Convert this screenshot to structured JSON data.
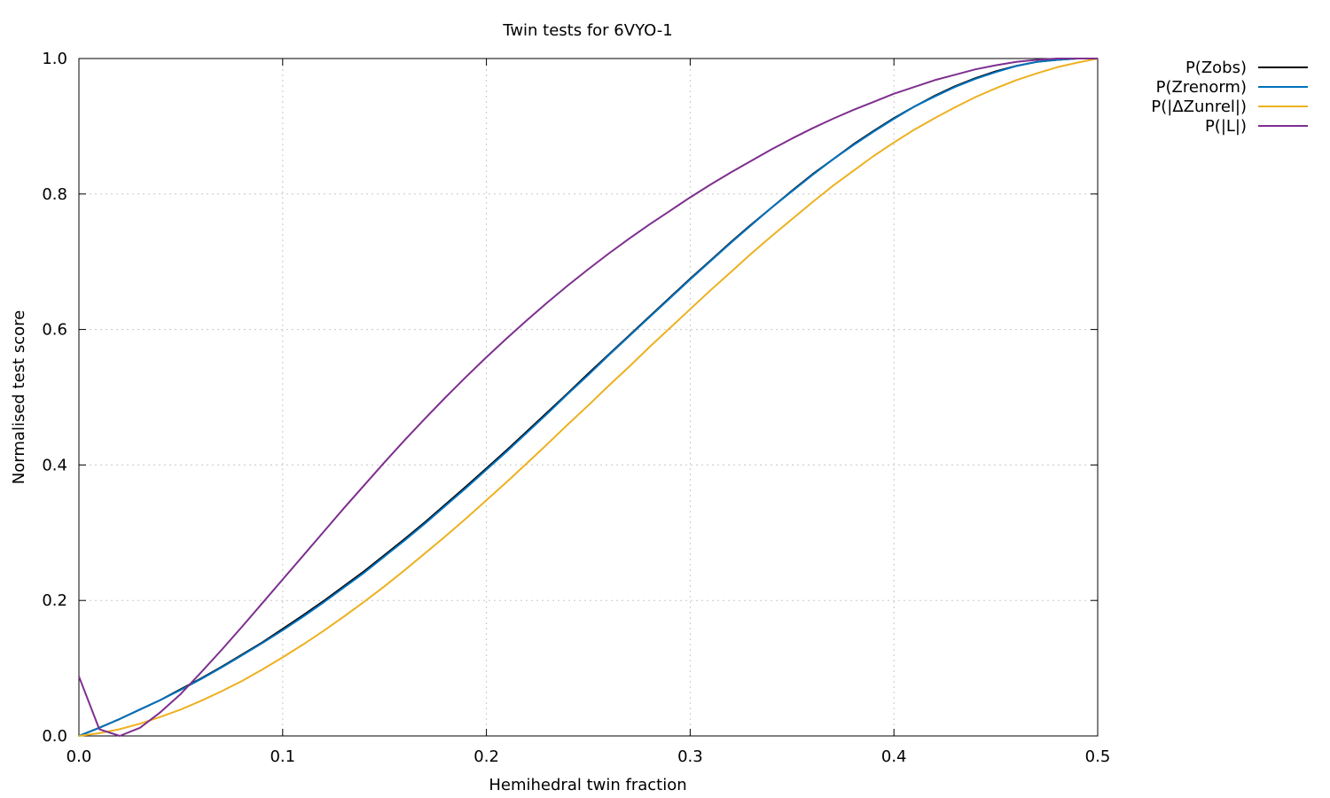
{
  "chart_data": {
    "type": "line",
    "title": "Twin tests for 6VYO-1",
    "xlabel": "Hemihedral twin fraction",
    "ylabel": "Normalised test score",
    "xlim": [
      0.0,
      0.5
    ],
    "ylim": [
      0.0,
      1.0
    ],
    "xticks": [
      "0.0",
      "0.1",
      "0.2",
      "0.3",
      "0.4",
      "0.5"
    ],
    "yticks": [
      "0.0",
      "0.2",
      "0.4",
      "0.6",
      "0.8",
      "1.0"
    ],
    "grid": true,
    "legend_position": "outside-top-right",
    "x": [
      0.0,
      0.01,
      0.02,
      0.03,
      0.04,
      0.05,
      0.06,
      0.07,
      0.08,
      0.09,
      0.1,
      0.11,
      0.12,
      0.13,
      0.14,
      0.15,
      0.16,
      0.17,
      0.18,
      0.19,
      0.2,
      0.21,
      0.22,
      0.23,
      0.24,
      0.25,
      0.26,
      0.27,
      0.28,
      0.29,
      0.3,
      0.31,
      0.32,
      0.33,
      0.34,
      0.35,
      0.36,
      0.37,
      0.38,
      0.39,
      0.4,
      0.41,
      0.42,
      0.43,
      0.44,
      0.45,
      0.46,
      0.47,
      0.48,
      0.49,
      0.5
    ],
    "series": [
      {
        "name": "P(Zobs)",
        "color": "#000000",
        "values": [
          0.0,
          0.012,
          0.025,
          0.039,
          0.053,
          0.069,
          0.085,
          0.102,
          0.12,
          0.138,
          0.158,
          0.178,
          0.199,
          0.221,
          0.243,
          0.267,
          0.291,
          0.316,
          0.342,
          0.368,
          0.395,
          0.422,
          0.45,
          0.478,
          0.506,
          0.535,
          0.563,
          0.591,
          0.619,
          0.647,
          0.675,
          0.702,
          0.729,
          0.755,
          0.78,
          0.805,
          0.829,
          0.851,
          0.873,
          0.893,
          0.912,
          0.929,
          0.945,
          0.959,
          0.971,
          0.981,
          0.989,
          0.995,
          0.998,
          1.0,
          1.0
        ]
      },
      {
        "name": "P(Zrenorm)",
        "color": "#0072bd",
        "values": [
          0.0,
          0.012,
          0.025,
          0.039,
          0.053,
          0.068,
          0.084,
          0.101,
          0.119,
          0.137,
          0.156,
          0.176,
          0.197,
          0.219,
          0.241,
          0.265,
          0.289,
          0.314,
          0.34,
          0.366,
          0.393,
          0.42,
          0.448,
          0.476,
          0.505,
          0.533,
          0.562,
          0.59,
          0.618,
          0.646,
          0.674,
          0.701,
          0.728,
          0.754,
          0.78,
          0.804,
          0.828,
          0.851,
          0.872,
          0.892,
          0.911,
          0.929,
          0.944,
          0.958,
          0.97,
          0.98,
          0.989,
          0.995,
          0.998,
          1.0,
          1.0
        ]
      },
      {
        "name": "P(|ΔZunrel|)",
        "color": "#edb120",
        "values": [
          0.0,
          0.004,
          0.01,
          0.018,
          0.028,
          0.039,
          0.052,
          0.066,
          0.081,
          0.098,
          0.116,
          0.135,
          0.155,
          0.176,
          0.198,
          0.221,
          0.245,
          0.27,
          0.295,
          0.321,
          0.348,
          0.375,
          0.403,
          0.431,
          0.46,
          0.488,
          0.517,
          0.545,
          0.574,
          0.602,
          0.63,
          0.658,
          0.685,
          0.712,
          0.738,
          0.763,
          0.788,
          0.812,
          0.834,
          0.856,
          0.876,
          0.895,
          0.912,
          0.928,
          0.943,
          0.956,
          0.968,
          0.978,
          0.987,
          0.994,
          1.0
        ]
      },
      {
        "name": "P(|L|)",
        "color": "#7e2f8e",
        "values": [
          0.088,
          0.01,
          0.0,
          0.012,
          0.035,
          0.062,
          0.094,
          0.127,
          0.161,
          0.196,
          0.231,
          0.266,
          0.301,
          0.336,
          0.37,
          0.404,
          0.437,
          0.469,
          0.5,
          0.53,
          0.559,
          0.587,
          0.614,
          0.64,
          0.665,
          0.689,
          0.712,
          0.734,
          0.755,
          0.775,
          0.795,
          0.814,
          0.832,
          0.849,
          0.866,
          0.882,
          0.897,
          0.911,
          0.924,
          0.936,
          0.948,
          0.958,
          0.968,
          0.976,
          0.984,
          0.99,
          0.995,
          0.998,
          1.0,
          1.0,
          1.0
        ]
      }
    ]
  }
}
